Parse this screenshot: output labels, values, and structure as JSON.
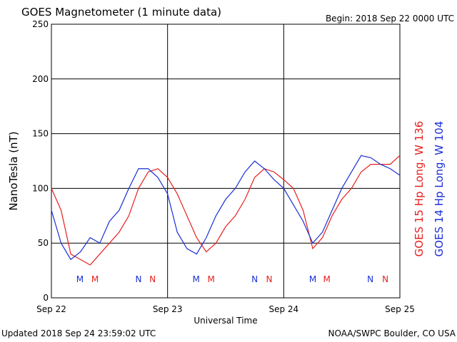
{
  "chart_data": {
    "type": "line",
    "title": "GOES Magnetometer (1 minute data)",
    "subtitle": "Begin:  2018 Sep 22 0000 UTC",
    "ylabel": "NanoTesla (nT)",
    "xlabel": "Universal Time",
    "footer_left": "Updated 2018 Sep 24 23:59:02 UTC",
    "footer_right": "NOAA/SWPC Boulder, CO USA",
    "x": [
      0,
      2,
      4,
      6,
      8,
      10,
      12,
      14,
      16,
      18,
      20,
      22,
      24,
      26,
      28,
      30,
      32,
      34,
      36,
      38,
      40,
      42,
      44,
      46,
      48,
      50,
      52,
      54,
      56,
      58,
      60,
      62,
      64,
      66,
      68,
      70,
      72
    ],
    "series": [
      {
        "name": "GOES 15 Hp  Long. W 136",
        "color": "#e8201e",
        "values": [
          100,
          80,
          40,
          35,
          30,
          40,
          50,
          60,
          75,
          100,
          115,
          118,
          110,
          95,
          75,
          55,
          42,
          50,
          65,
          75,
          90,
          110,
          118,
          115,
          108,
          100,
          80,
          45,
          55,
          75,
          90,
          100,
          115,
          122,
          122,
          122,
          130
        ]
      },
      {
        "name": "GOES 14 Hp  Long. W 104",
        "color": "#1a2fd6",
        "values": [
          80,
          50,
          35,
          42,
          55,
          50,
          70,
          80,
          100,
          118,
          118,
          110,
          95,
          60,
          45,
          40,
          55,
          75,
          90,
          100,
          115,
          125,
          118,
          108,
          100,
          85,
          70,
          50,
          60,
          80,
          100,
          115,
          130,
          128,
          122,
          118,
          112
        ]
      }
    ],
    "annotations": [
      {
        "x": 5.9,
        "text": "M",
        "color": "#1a2fd6"
      },
      {
        "x": 9.0,
        "text": "M",
        "color": "#e8201e"
      },
      {
        "x": 18.0,
        "text": "N",
        "color": "#1a2fd6"
      },
      {
        "x": 20.9,
        "text": "N",
        "color": "#e8201e"
      },
      {
        "x": 29.9,
        "text": "M",
        "color": "#1a2fd6"
      },
      {
        "x": 33.0,
        "text": "M",
        "color": "#e8201e"
      },
      {
        "x": 42.0,
        "text": "N",
        "color": "#1a2fd6"
      },
      {
        "x": 45.0,
        "text": "N",
        "color": "#e8201e"
      },
      {
        "x": 54.0,
        "text": "M",
        "color": "#1a2fd6"
      },
      {
        "x": 56.9,
        "text": "M",
        "color": "#e8201e"
      },
      {
        "x": 65.9,
        "text": "N",
        "color": "#1a2fd6"
      },
      {
        "x": 69.0,
        "text": "N",
        "color": "#e8201e"
      }
    ],
    "xlim": [
      0,
      72
    ],
    "xticks": [
      {
        "value": 0,
        "label": "Sep 22"
      },
      {
        "value": 24,
        "label": "Sep 23"
      },
      {
        "value": 48,
        "label": "Sep 24"
      },
      {
        "value": 72,
        "label": "Sep 25"
      }
    ],
    "ylim": [
      0,
      250
    ],
    "yticks": [
      0,
      50,
      100,
      150,
      200,
      250
    ],
    "grid": true
  }
}
